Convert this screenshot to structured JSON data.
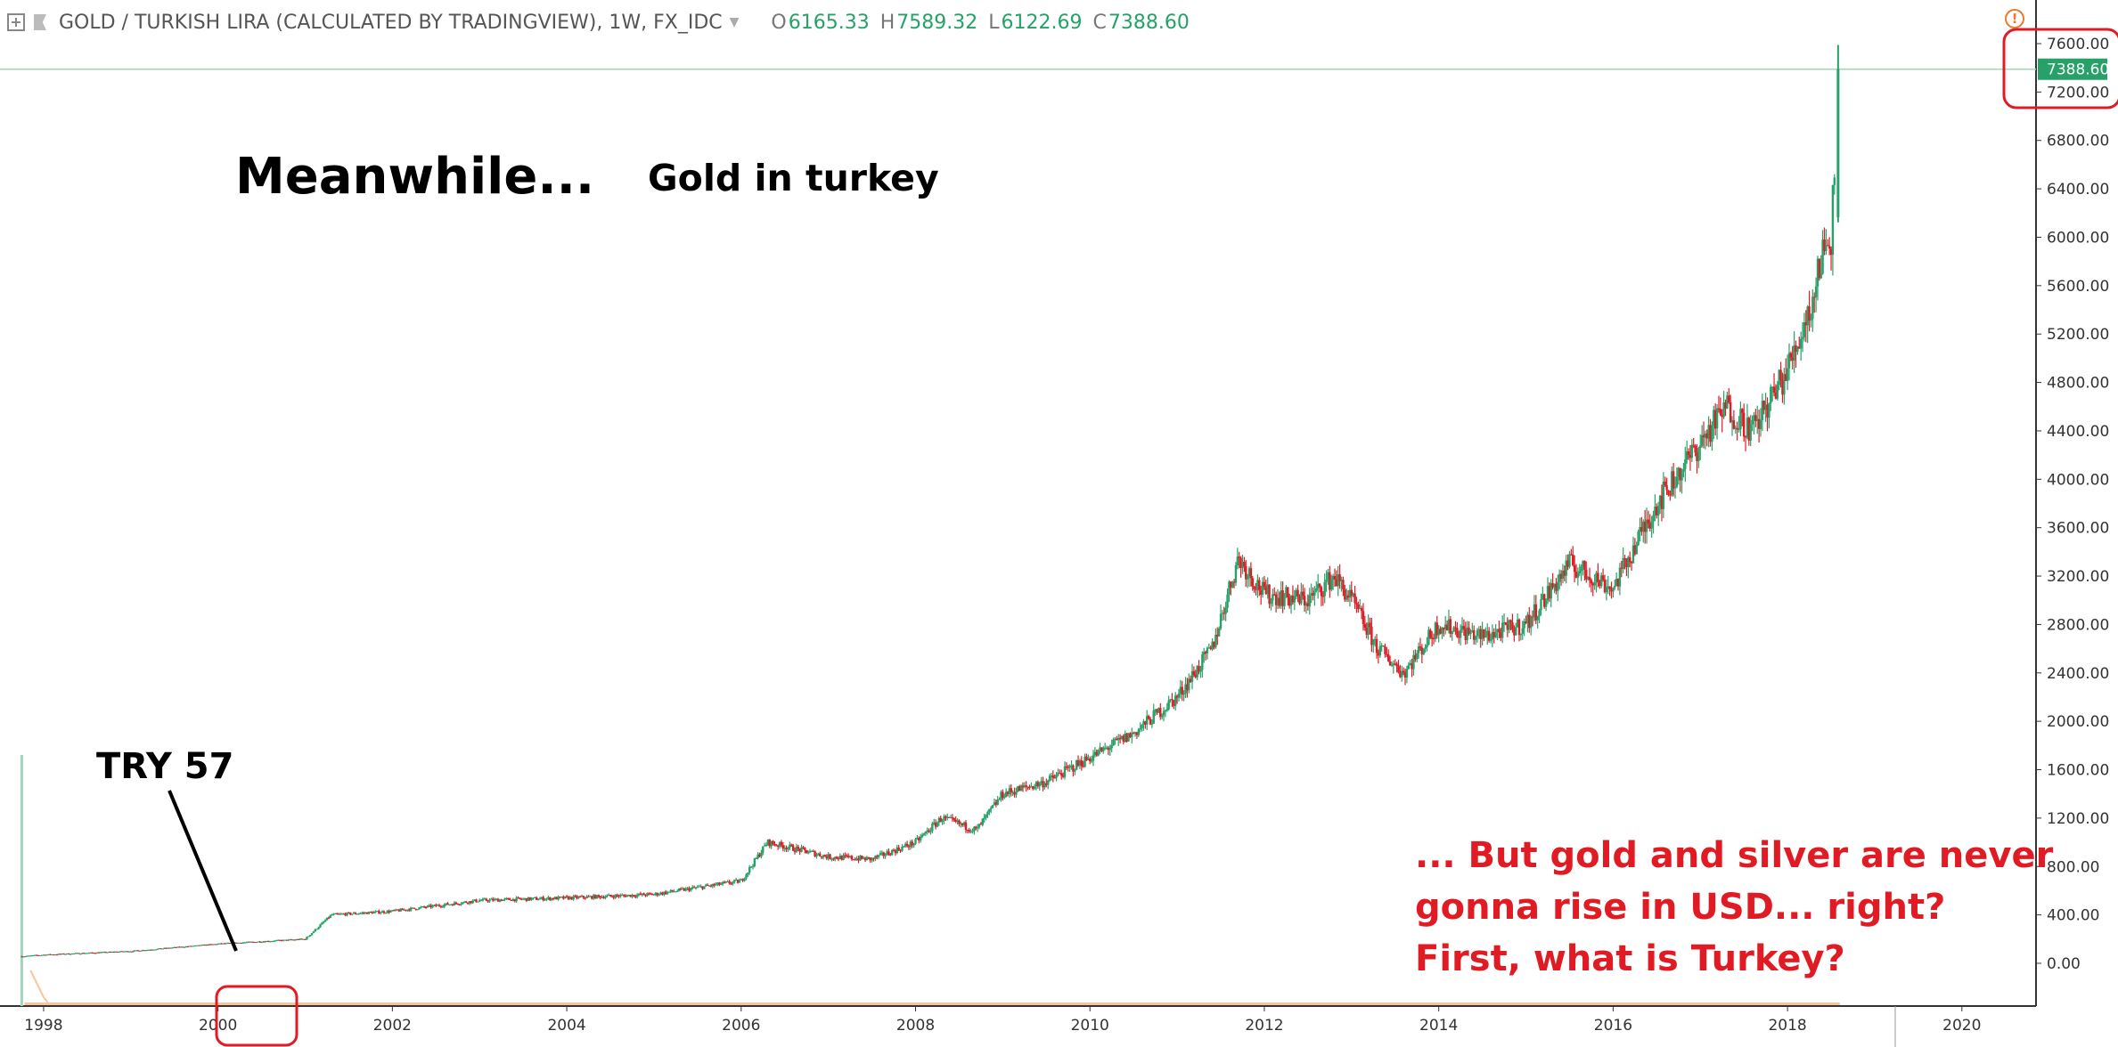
{
  "header": {
    "symbol_title": "GOLD / TURKISH LIRA (CALCULATED BY TRADINGVIEW), 1W, FX_IDC",
    "open_label": "O",
    "open_value": "6165.33",
    "high_label": "H",
    "high_value": "7589.32",
    "low_label": "L",
    "low_value": "6122.69",
    "close_label": "C",
    "close_value": "7388.60",
    "warning_icon": "exclamation-circle-icon",
    "expand_icon": "plus-square-icon",
    "flag_icon": "flag-icon"
  },
  "annotations": {
    "meanwhile": "Meanwhile...",
    "gold_in_turkey": "Gold in turkey",
    "try57": "TRY 57",
    "red_text": [
      "... But gold and silver are never",
      "gonna rise in USD... right?",
      "First, what is Turkey?"
    ]
  },
  "colors": {
    "up": "#26a269",
    "down": "#e01b24",
    "price_label_bg": "#26a269",
    "highlight_box": "#e01b24",
    "annotation_red": "#e01b24",
    "volume": "#f6c59b",
    "grid": "#ffffff"
  },
  "chart_data": {
    "type": "line",
    "title": "GOLD / TURKISH LIRA (CALCULATED BY TRADINGVIEW), 1W, FX_IDC",
    "xlabel": "",
    "ylabel": "",
    "x": [
      1997.75,
      1998.0,
      1999.0,
      2000.0,
      2001.0,
      2001.3,
      2002.0,
      2003.0,
      2004.0,
      2005.0,
      2006.0,
      2006.3,
      2006.6,
      2007.0,
      2007.5,
      2008.0,
      2008.3,
      2008.7,
      2009.0,
      2009.5,
      2010.0,
      2010.5,
      2011.0,
      2011.4,
      2011.7,
      2012.0,
      2012.5,
      2012.8,
      2013.0,
      2013.3,
      2013.6,
      2014.0,
      2014.5,
      2015.0,
      2015.5,
      2016.0,
      2016.5,
      2017.0,
      2017.3,
      2017.6,
      2018.0,
      2018.3,
      2018.4,
      2018.5,
      2018.58
    ],
    "y": [
      57,
      70,
      100,
      160,
      200,
      400,
      430,
      520,
      540,
      570,
      680,
      1000,
      950,
      880,
      860,
      1000,
      1200,
      1100,
      1400,
      1500,
      1700,
      1900,
      2200,
      2600,
      3350,
      3050,
      3000,
      3200,
      3000,
      2600,
      2400,
      2800,
      2700,
      2800,
      3300,
      3100,
      3800,
      4300,
      4600,
      4400,
      4900,
      5500,
      5900,
      6000,
      7388.6
    ],
    "last_price": 7388.6,
    "y_ticks": [
      "0.00",
      "400.00",
      "800.00",
      "1200.00",
      "1600.00",
      "2000.00",
      "2400.00",
      "2800.00",
      "3200.00",
      "3600.00",
      "4000.00",
      "4400.00",
      "4800.00",
      "5200.00",
      "5600.00",
      "6000.00",
      "6400.00",
      "6800.00",
      "7200.00",
      "7600.00"
    ],
    "x_ticks": [
      "1998",
      "2000",
      "2002",
      "2004",
      "2006",
      "2008",
      "2010",
      "2012",
      "2014",
      "2016",
      "2018",
      "2020"
    ],
    "xlim": [
      1997.5,
      2020.85
    ],
    "ylim": [
      -380,
      8000
    ],
    "grid": false,
    "legend": "none"
  }
}
